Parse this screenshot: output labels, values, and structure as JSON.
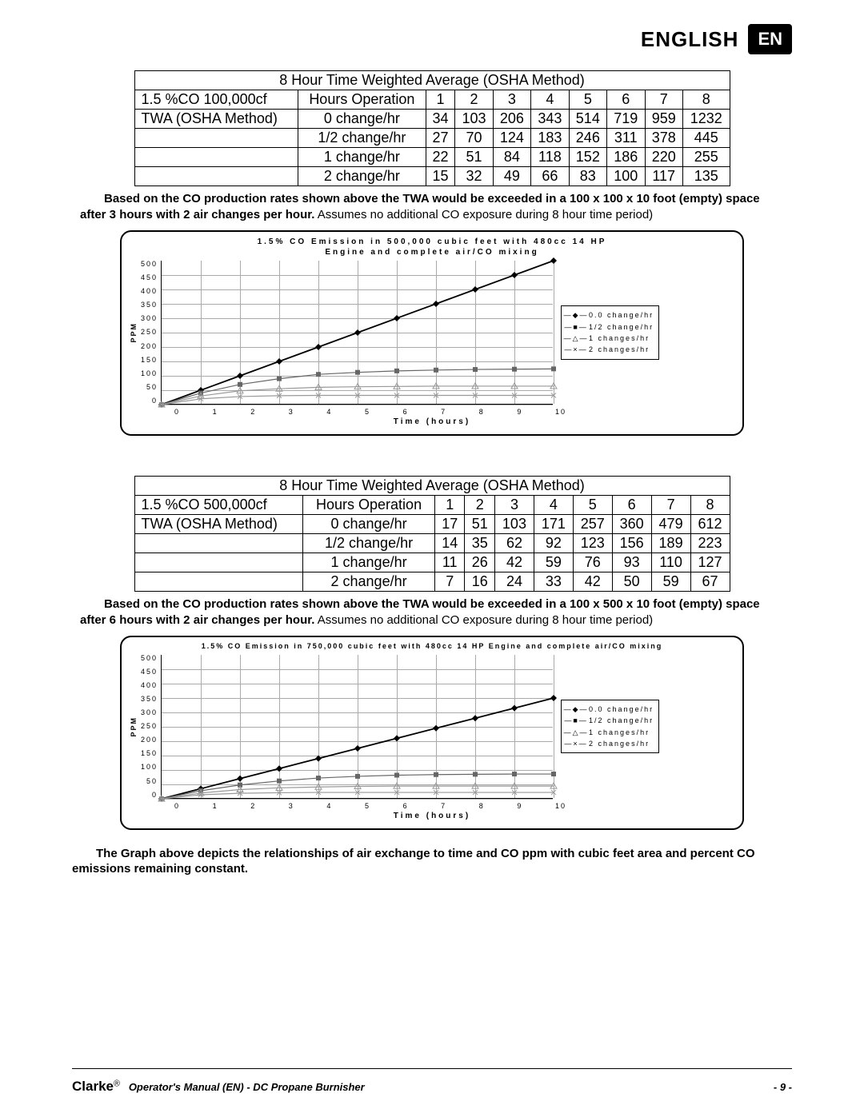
{
  "header": {
    "title": "ENGLISH",
    "badge": "EN"
  },
  "table1": {
    "title": "8 Hour Time Weighted Average (OSHA Method)",
    "row_a": "1.5 %CO 100,000cf",
    "row_b": "TWA (OSHA Method)",
    "hours_label": "Hours Operation",
    "hours": [
      "1",
      "2",
      "3",
      "4",
      "5",
      "6",
      "7",
      "8"
    ],
    "rows": [
      {
        "label": "0 change/hr",
        "vals": [
          "34",
          "103",
          "206",
          "343",
          "514",
          "719",
          "959",
          "1232"
        ]
      },
      {
        "label": "1/2 change/hr",
        "vals": [
          "27",
          "70",
          "124",
          "183",
          "246",
          "311",
          "378",
          "445"
        ]
      },
      {
        "label": "1 change/hr",
        "vals": [
          "22",
          "51",
          "84",
          "118",
          "152",
          "186",
          "220",
          "255"
        ]
      },
      {
        "label": "2 change/hr",
        "vals": [
          "15",
          "32",
          "49",
          "66",
          "83",
          "100",
          "117",
          "135"
        ]
      }
    ]
  },
  "caption1_bold": "Based on the CO production rates shown above the TWA would be exceeded in a 100 x 100 x 10 foot (empty) space after 3 hours with 2 air changes per hour.",
  "caption1_rest": " Assumes no additional CO exposure during 8 hour time period)",
  "chart1": {
    "title_l1": "1.5% CO Emission in 500,000 cubic feet with 480cc 14 HP",
    "title_l2": "Engine and complete air/CO mixing",
    "y_label": "PPM",
    "x_label": "Time (hours)",
    "ymax": 500,
    "y_ticks": [
      "500",
      "450",
      "400",
      "350",
      "300",
      "250",
      "200",
      "150",
      "100",
      "50",
      "0"
    ],
    "x_ticks": [
      "0",
      "1",
      "2",
      "3",
      "4",
      "5",
      "6",
      "7",
      "8",
      "9",
      "10"
    ],
    "legend": [
      "0.0 change/hr",
      "1/2 change/hr",
      "1 changes/hr",
      "2 changes/hr"
    ],
    "series": [
      {
        "marker": "diamond",
        "color": "#000000",
        "vals": [
          0,
          50,
          100,
          150,
          200,
          250,
          300,
          350,
          400,
          450,
          500
        ]
      },
      {
        "marker": "square",
        "color": "#666666",
        "vals": [
          0,
          40,
          70,
          90,
          105,
          112,
          117,
          120,
          122,
          123,
          124
        ]
      },
      {
        "marker": "triangle",
        "color": "#999999",
        "vals": [
          0,
          30,
          48,
          55,
          60,
          62,
          63,
          64,
          64,
          64,
          64
        ]
      },
      {
        "marker": "x",
        "color": "#999999",
        "vals": [
          0,
          20,
          28,
          31,
          32,
          32,
          32,
          32,
          32,
          32,
          32
        ]
      }
    ]
  },
  "table2": {
    "title": "8 Hour Time Weighted Average (OSHA Method)",
    "row_a": "1.5 %CO 500,000cf",
    "row_b": "TWA (OSHA Method)",
    "hours_label": "Hours Operation",
    "hours": [
      "1",
      "2",
      "3",
      "4",
      "5",
      "6",
      "7",
      "8"
    ],
    "rows": [
      {
        "label": "0 change/hr",
        "vals": [
          "17",
          "51",
          "103",
          "171",
          "257",
          "360",
          "479",
          "612"
        ]
      },
      {
        "label": "1/2 change/hr",
        "vals": [
          "14",
          "35",
          "62",
          "92",
          "123",
          "156",
          "189",
          "223"
        ]
      },
      {
        "label": "1 change/hr",
        "vals": [
          "11",
          "26",
          "42",
          "59",
          "76",
          "93",
          "110",
          "127"
        ]
      },
      {
        "label": "2 change/hr",
        "vals": [
          "7",
          "16",
          "24",
          "33",
          "42",
          "50",
          "59",
          "67"
        ]
      }
    ]
  },
  "caption2_bold": "Based on the CO production rates shown above the TWA would be exceeded in a 100 x 500 x 10 foot (empty) space after 6 hours with 2 air changes per hour.",
  "caption2_rest": " Assumes no additional CO exposure during 8 hour time period)",
  "chart2": {
    "title": "1.5% CO Emission in 750,000 cubic feet with 480cc 14 HP Engine and complete air/CO mixing",
    "y_label": "PPM",
    "x_label": "Time (hours)",
    "ymax": 500,
    "y_ticks": [
      "500",
      "450",
      "400",
      "350",
      "300",
      "250",
      "200",
      "150",
      "100",
      "50",
      "0"
    ],
    "x_ticks": [
      "0",
      "1",
      "2",
      "3",
      "4",
      "5",
      "6",
      "7",
      "8",
      "9",
      "10"
    ],
    "legend": [
      "0.0 change/hr",
      "1/2 change/hr",
      "1 changes/hr",
      "2 changes/hr"
    ],
    "series": [
      {
        "marker": "diamond",
        "color": "#000000",
        "vals": [
          0,
          35,
          70,
          105,
          140,
          175,
          210,
          245,
          280,
          315,
          350
        ]
      },
      {
        "marker": "square",
        "color": "#666666",
        "vals": [
          0,
          28,
          48,
          62,
          72,
          78,
          82,
          84,
          85,
          86,
          86
        ]
      },
      {
        "marker": "triangle",
        "color": "#999999",
        "vals": [
          0,
          20,
          32,
          38,
          41,
          43,
          44,
          44,
          44,
          44,
          44
        ]
      },
      {
        "marker": "x",
        "color": "#999999",
        "vals": [
          0,
          14,
          19,
          21,
          22,
          22,
          22,
          22,
          22,
          22,
          22
        ]
      }
    ]
  },
  "final_caption": "The Graph above depicts the relationships of air exchange to time and CO ppm with cubic feet area and percent CO emissions remaining constant.",
  "footer": {
    "brand": "Clarke",
    "reg": "®",
    "sub": "Operator's Manual (EN) - DC Propane Burnisher",
    "page": "- 9 -"
  }
}
